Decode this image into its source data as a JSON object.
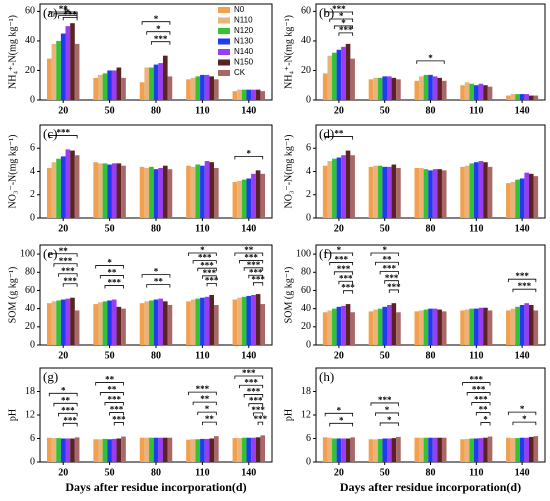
{
  "legend": {
    "names": [
      "N0",
      "N110",
      "N120",
      "N130",
      "N140",
      "N150",
      "CK"
    ],
    "colors": [
      "#f2a04e",
      "#e8b47c",
      "#33c233",
      "#1f3cf0",
      "#9a3cf0",
      "#5a2222",
      "#a86868"
    ]
  },
  "chart_data": [
    {
      "type": "bar",
      "label": "(a)",
      "ylabel": "NH₄⁺-N(mg kg⁻¹)",
      "categories": [
        "20",
        "50",
        "80",
        "110",
        "140"
      ],
      "ylim": [
        0,
        65
      ],
      "yticks": [
        0,
        20,
        40,
        60
      ],
      "series": [
        {
          "values": [
            28,
            15,
            12,
            14,
            6
          ]
        },
        {
          "values": [
            38,
            17,
            22,
            15,
            7
          ]
        },
        {
          "values": [
            40,
            18,
            22,
            16,
            7
          ]
        },
        {
          "values": [
            45,
            20,
            24,
            17,
            7
          ]
        },
        {
          "values": [
            50,
            20,
            25,
            17,
            7
          ]
        },
        {
          "values": [
            52,
            22,
            30,
            16,
            7
          ]
        },
        {
          "values": [
            38,
            15,
            16,
            14,
            6
          ]
        }
      ],
      "annotations": [
        {
          "category": 0,
          "labels": [
            "**",
            "*",
            "*",
            "***"
          ]
        },
        {
          "category": 2,
          "labels": [
            "*",
            "*",
            "***"
          ]
        }
      ]
    },
    {
      "type": "bar",
      "label": "(b)",
      "ylabel": "NH₄⁺-N(mg kg⁻¹)",
      "categories": [
        "20",
        "50",
        "80",
        "110",
        "140"
      ],
      "ylim": [
        0,
        65
      ],
      "yticks": [
        0,
        20,
        40,
        60
      ],
      "series": [
        {
          "values": [
            18,
            14,
            13,
            10,
            3
          ]
        },
        {
          "values": [
            30,
            15,
            16,
            12,
            4
          ]
        },
        {
          "values": [
            32,
            15,
            17,
            11,
            4
          ]
        },
        {
          "values": [
            34,
            16,
            17,
            10,
            4
          ]
        },
        {
          "values": [
            36,
            16,
            16,
            11,
            4
          ]
        },
        {
          "values": [
            38,
            15,
            15,
            10,
            3
          ]
        },
        {
          "values": [
            28,
            14,
            13,
            9,
            3
          ]
        }
      ],
      "annotations": [
        {
          "category": 0,
          "labels": [
            "***",
            "*",
            "*",
            "***"
          ]
        },
        {
          "category": 2,
          "labels": [
            "*"
          ]
        }
      ]
    },
    {
      "type": "bar",
      "label": "(c)",
      "ylabel": "NO₃⁻-N(mg kg⁻¹)",
      "categories": [
        "20",
        "50",
        "80",
        "110",
        "140"
      ],
      "ylim": [
        0,
        8
      ],
      "yticks": [
        0,
        2,
        4,
        6
      ],
      "series": [
        {
          "values": [
            4.3,
            4.8,
            4.4,
            4.5,
            3.1
          ]
        },
        {
          "values": [
            4.8,
            4.7,
            4.3,
            4.4,
            3.2
          ]
        },
        {
          "values": [
            5.1,
            4.7,
            4.4,
            4.6,
            3.3
          ]
        },
        {
          "values": [
            5.3,
            4.6,
            4.2,
            4.5,
            3.4
          ]
        },
        {
          "values": [
            5.9,
            4.7,
            4.3,
            4.9,
            3.8
          ]
        },
        {
          "values": [
            5.8,
            4.7,
            4.5,
            4.8,
            4.1
          ]
        },
        {
          "values": [
            5.4,
            4.5,
            4.2,
            4.3,
            3.8
          ]
        }
      ],
      "annotations": [
        {
          "category": 0,
          "labels": [
            "***"
          ]
        },
        {
          "category": 4,
          "labels": [
            "*"
          ]
        }
      ]
    },
    {
      "type": "bar",
      "label": "(d)",
      "ylabel": "NO₃⁻-N(mg kg⁻¹)",
      "categories": [
        "20",
        "50",
        "80",
        "110",
        "140"
      ],
      "ylim": [
        0,
        8
      ],
      "yticks": [
        0,
        2,
        4,
        6
      ],
      "series": [
        {
          "values": [
            4.5,
            4.4,
            4.3,
            4.4,
            3.0
          ]
        },
        {
          "values": [
            4.9,
            4.5,
            4.3,
            4.5,
            3.1
          ]
        },
        {
          "values": [
            5.1,
            4.5,
            4.2,
            4.7,
            3.3
          ]
        },
        {
          "values": [
            5.2,
            4.4,
            4.1,
            4.8,
            3.4
          ]
        },
        {
          "values": [
            5.4,
            4.4,
            4.2,
            4.9,
            3.9
          ]
        },
        {
          "values": [
            5.8,
            4.6,
            4.2,
            4.8,
            3.8
          ]
        },
        {
          "values": [
            5.4,
            4.3,
            4.1,
            4.4,
            3.6
          ]
        }
      ],
      "annotations": [
        {
          "category": 0,
          "labels": [
            "**"
          ]
        }
      ]
    },
    {
      "type": "bar",
      "label": "(e)",
      "ylabel": "SOM (g kg⁻¹)",
      "categories": [
        "20",
        "50",
        "80",
        "110",
        "140"
      ],
      "ylim": [
        0,
        110
      ],
      "yticks": [
        0,
        20,
        40,
        60,
        80,
        100
      ],
      "series": [
        {
          "values": [
            46,
            45,
            46,
            48,
            50
          ]
        },
        {
          "values": [
            48,
            47,
            48,
            50,
            52
          ]
        },
        {
          "values": [
            49,
            48,
            49,
            51,
            53
          ]
        },
        {
          "values": [
            50,
            49,
            50,
            52,
            54
          ]
        },
        {
          "values": [
            51,
            50,
            51,
            53,
            55
          ]
        },
        {
          "values": [
            52,
            42,
            48,
            55,
            56
          ]
        },
        {
          "values": [
            38,
            40,
            44,
            44,
            45
          ]
        }
      ],
      "annotations": [
        {
          "category": 0,
          "labels": [
            "**",
            "***",
            "***",
            "***"
          ]
        },
        {
          "category": 1,
          "labels": [
            "*",
            "**",
            "***"
          ]
        },
        {
          "category": 2,
          "labels": [
            "*",
            "**"
          ]
        },
        {
          "category": 3,
          "labels": [
            "*",
            "***",
            "***",
            "***",
            "***"
          ]
        },
        {
          "category": 4,
          "labels": [
            "**",
            "***",
            "***",
            "***",
            "***"
          ]
        }
      ]
    },
    {
      "type": "bar",
      "label": "(f)",
      "ylabel": "SOM (g kg⁻¹)",
      "categories": [
        "20",
        "50",
        "80",
        "110",
        "140"
      ],
      "ylim": [
        0,
        110
      ],
      "yticks": [
        0,
        20,
        40,
        60,
        80,
        100
      ],
      "series": [
        {
          "values": [
            36,
            37,
            37,
            38,
            38
          ]
        },
        {
          "values": [
            38,
            39,
            38,
            39,
            40
          ]
        },
        {
          "values": [
            40,
            40,
            39,
            40,
            42
          ]
        },
        {
          "values": [
            42,
            42,
            40,
            40,
            44
          ]
        },
        {
          "values": [
            43,
            44,
            40,
            41,
            46
          ]
        },
        {
          "values": [
            45,
            46,
            39,
            41,
            44
          ]
        },
        {
          "values": [
            36,
            36,
            37,
            38,
            38
          ]
        }
      ],
      "annotations": [
        {
          "category": 0,
          "labels": [
            "*",
            "***",
            "***",
            "***",
            "***"
          ]
        },
        {
          "category": 1,
          "labels": [
            "*",
            "**",
            "***",
            "***",
            "***"
          ]
        },
        {
          "category": 4,
          "labels": [
            "***",
            "***"
          ]
        }
      ]
    },
    {
      "type": "bar",
      "label": "(g)",
      "ylabel": "pH",
      "categories": [
        "20",
        "50",
        "80",
        "110",
        "140"
      ],
      "xlabel": "Days after residue incorporation(d)",
      "ylim": [
        0,
        24
      ],
      "yticks": [
        0,
        6,
        12,
        18
      ],
      "series": [
        {
          "values": [
            6.2,
            5.8,
            6.2,
            5.7,
            6.1
          ]
        },
        {
          "values": [
            6.1,
            5.8,
            6.2,
            5.8,
            6.1
          ]
        },
        {
          "values": [
            6.1,
            5.9,
            6.2,
            5.8,
            6.2
          ]
        },
        {
          "values": [
            6.0,
            5.8,
            6.2,
            5.9,
            6.2
          ]
        },
        {
          "values": [
            6.0,
            5.9,
            6.2,
            5.9,
            6.2
          ]
        },
        {
          "values": [
            6.0,
            6.0,
            6.2,
            6.0,
            6.3
          ]
        },
        {
          "values": [
            6.3,
            6.5,
            6.2,
            6.6,
            6.8
          ]
        }
      ],
      "annotations": [
        {
          "category": 0,
          "labels": [
            "*",
            "**",
            "***",
            "***"
          ]
        },
        {
          "category": 1,
          "labels": [
            "**",
            "**",
            "***",
            "***",
            "***"
          ]
        },
        {
          "category": 3,
          "labels": [
            "***",
            "**",
            "*",
            "**"
          ]
        },
        {
          "category": 4,
          "labels": [
            "***",
            "***",
            "***",
            "***",
            "***",
            "***"
          ]
        }
      ]
    },
    {
      "type": "bar",
      "label": "(h)",
      "ylabel": "pH",
      "categories": [
        "20",
        "50",
        "80",
        "110",
        "140"
      ],
      "xlabel": "Days after residue incorporation(d)",
      "ylim": [
        0,
        24
      ],
      "yticks": [
        0,
        6,
        12,
        18
      ],
      "series": [
        {
          "values": [
            6.3,
            5.8,
            6.2,
            5.8,
            6.2
          ]
        },
        {
          "values": [
            6.2,
            5.8,
            6.2,
            5.9,
            6.1
          ]
        },
        {
          "values": [
            6.0,
            5.9,
            6.2,
            6.0,
            6.1
          ]
        },
        {
          "values": [
            6.0,
            6.0,
            6.2,
            6.0,
            6.2
          ]
        },
        {
          "values": [
            6.0,
            6.0,
            6.2,
            6.1,
            6.2
          ]
        },
        {
          "values": [
            6.0,
            6.1,
            6.2,
            6.2,
            6.4
          ]
        },
        {
          "values": [
            6.3,
            6.4,
            6.2,
            6.5,
            6.6
          ]
        }
      ],
      "annotations": [
        {
          "category": 0,
          "labels": [
            "*",
            "*"
          ]
        },
        {
          "category": 1,
          "labels": [
            "***",
            "*",
            "*"
          ]
        },
        {
          "category": 3,
          "labels": [
            "***",
            "***",
            "***",
            "**",
            "*"
          ]
        },
        {
          "category": 4,
          "labels": [
            "*",
            "*"
          ]
        }
      ]
    }
  ]
}
